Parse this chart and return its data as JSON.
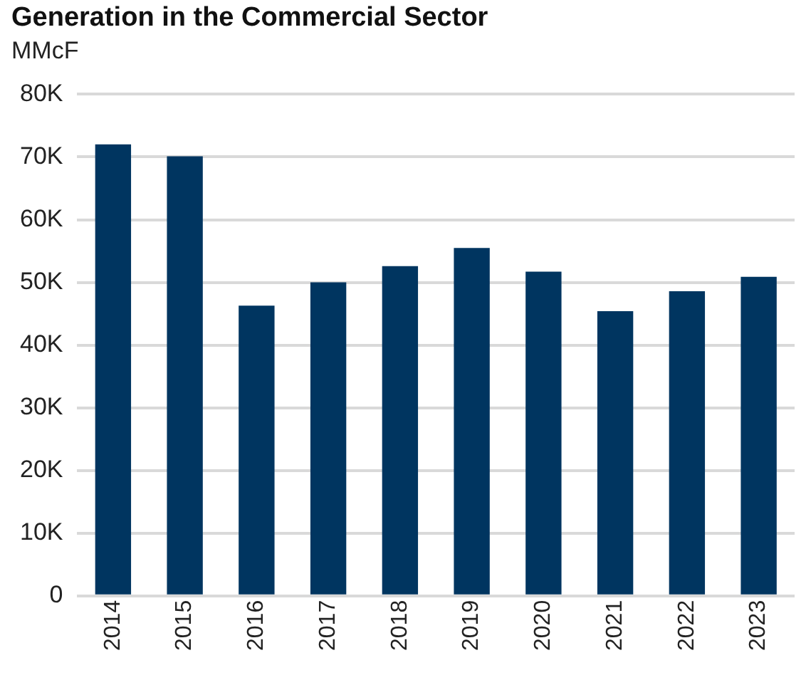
{
  "chart_data": {
    "type": "bar",
    "title": "Generation in the Commercial Sector",
    "ylabel": "MMcF",
    "categories": [
      "2014",
      "2015",
      "2016",
      "2017",
      "2018",
      "2019",
      "2020",
      "2021",
      "2022",
      "2023"
    ],
    "values": [
      72000,
      70100,
      46300,
      50000,
      52600,
      55500,
      51700,
      45400,
      48600,
      50900
    ],
    "color": "#003560",
    "ylim": [
      0,
      80000
    ],
    "yticks": [
      {
        "value": 0,
        "label": "0"
      },
      {
        "value": 10000,
        "label": "10K"
      },
      {
        "value": 20000,
        "label": "20K"
      },
      {
        "value": 30000,
        "label": "30K"
      },
      {
        "value": 40000,
        "label": "40K"
      },
      {
        "value": 50000,
        "label": "50K"
      },
      {
        "value": 60000,
        "label": "60K"
      },
      {
        "value": 70000,
        "label": "70K"
      },
      {
        "value": 80000,
        "label": "80K"
      }
    ],
    "grid": "y",
    "legend": false
  }
}
